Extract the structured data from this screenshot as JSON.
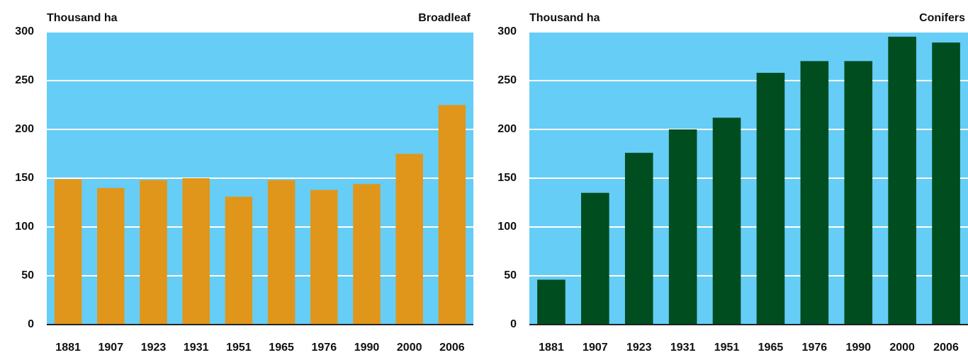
{
  "chart_data": [
    {
      "type": "bar",
      "title": "Broadleaf",
      "y_label": "Thousand ha",
      "categories": [
        "1881",
        "1907",
        "1923",
        "1931",
        "1951",
        "1965",
        "1976",
        "1990",
        "2000",
        "2006"
      ],
      "values": [
        149,
        140,
        148,
        150,
        131,
        148,
        138,
        144,
        175,
        225
      ],
      "color": "#e0961a",
      "ylim": [
        0,
        300
      ],
      "yticks": [
        0,
        50,
        100,
        150,
        200,
        250,
        300
      ],
      "grid": true
    },
    {
      "type": "bar",
      "title": "Conifers",
      "y_label": "Thousand ha",
      "categories": [
        "1881",
        "1907",
        "1923",
        "1931",
        "1951",
        "1965",
        "1976",
        "1990",
        "2000",
        "2006"
      ],
      "values": [
        46,
        135,
        176,
        200,
        212,
        258,
        270,
        270,
        295,
        289
      ],
      "color": "#004d1f",
      "ylim": [
        0,
        300
      ],
      "yticks": [
        0,
        50,
        100,
        150,
        200,
        250,
        300
      ],
      "grid": true
    }
  ]
}
